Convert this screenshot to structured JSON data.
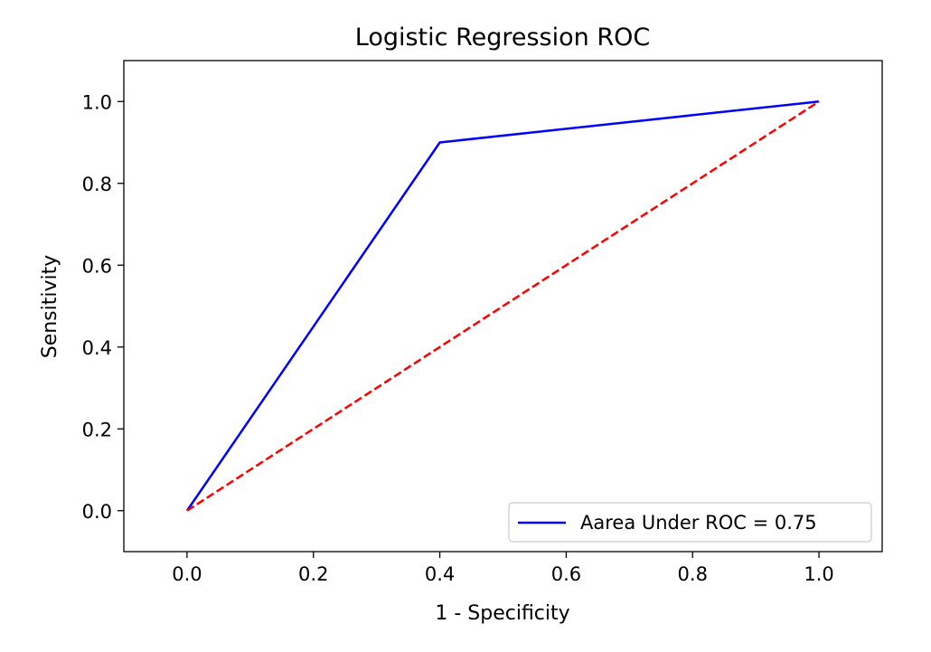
{
  "chart_data": {
    "type": "line",
    "title": "Logistic Regression ROC",
    "xlabel": "1 - Specificity",
    "ylabel": "Sensitivity",
    "xlim": [
      -0.1,
      1.1
    ],
    "ylim": [
      -0.1,
      1.1
    ],
    "xticks": [
      0.0,
      0.2,
      0.4,
      0.6,
      0.8,
      1.0
    ],
    "xtick_labels": [
      "0.0",
      "0.2",
      "0.4",
      "0.6",
      "0.8",
      "1.0"
    ],
    "yticks": [
      0.0,
      0.2,
      0.4,
      0.6,
      0.8,
      1.0
    ],
    "ytick_labels": [
      "0.0",
      "0.2",
      "0.4",
      "0.6",
      "0.8",
      "1.0"
    ],
    "grid": false,
    "legend_position": "lower-right",
    "series": [
      {
        "name": "Aarea Under ROC = 0.75",
        "x": [
          0.0,
          0.4,
          1.0
        ],
        "y": [
          0.0,
          0.9,
          1.0
        ],
        "color": "#0000ff",
        "style": "solid"
      },
      {
        "x": [
          0.0,
          1.0
        ],
        "y": [
          0.0,
          1.0
        ],
        "color": "#ff0000",
        "style": "dashed"
      }
    ]
  }
}
